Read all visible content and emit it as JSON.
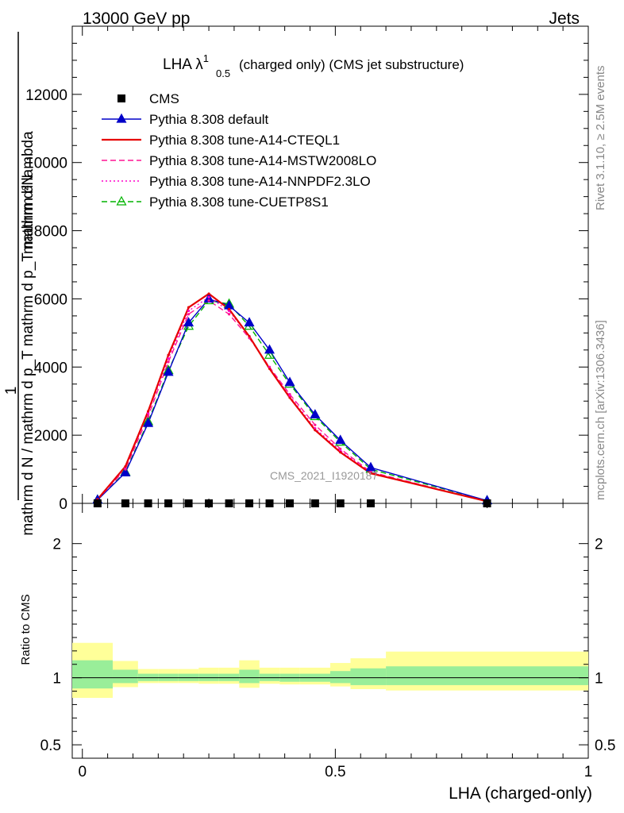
{
  "header": {
    "energy_label": "13000 GeV pp",
    "process_label": "Jets"
  },
  "side_labels": {
    "rivet": "Rivet 3.1.10, ≥ 2.5M events",
    "mcplots": "mcplots.cern.ch [arXiv:1306.3436]"
  },
  "analysis_id": "CMS_2021_I1920187",
  "chart_data": {
    "type": "line",
    "title": "LHA λ¹₀.₅ (charged only) (CMS jet substructure)",
    "title_parts": {
      "main": "LHA λ",
      "sup": "1",
      "sub": "0.5",
      "rest": "(charged only) (CMS jet substructure)"
    },
    "xlabel": "LHA (charged-only)",
    "ylabel_top": "1",
    "ylabel_num": "mathrm d²N",
    "ylabel_den": "mathrm d N / mathrm d p_T mathrm d p_T mathrm d lambda",
    "ratio_ylabel": "Ratio to CMS",
    "xlim": [
      -0.02,
      1.0
    ],
    "ylim": [
      0,
      14000
    ],
    "ratio_ylim": [
      0.4,
      2.3
    ],
    "x_ticks": [
      "0",
      "0.5",
      "1"
    ],
    "y_ticks": [
      "0",
      "2000",
      "4000",
      "6000",
      "8000",
      "10000",
      "12000"
    ],
    "ratio_ticks": [
      "0.5",
      "1",
      "2"
    ],
    "legend_position": "top-left",
    "x": [
      0.03,
      0.085,
      0.13,
      0.17,
      0.21,
      0.25,
      0.29,
      0.33,
      0.37,
      0.41,
      0.46,
      0.51,
      0.57,
      0.8
    ],
    "bin_edges": [
      -0.02,
      0.06,
      0.11,
      0.15,
      0.19,
      0.23,
      0.27,
      0.31,
      0.35,
      0.39,
      0.43,
      0.49,
      0.53,
      0.6,
      1.0
    ],
    "series": [
      {
        "name": "CMS",
        "color": "#000000",
        "marker": "square",
        "line": "none",
        "values": [
          0,
          0,
          0,
          0,
          0,
          0,
          0,
          0,
          0,
          0,
          0,
          0,
          0,
          0
        ]
      },
      {
        "name": "Pythia 8.308 default",
        "color": "#0000c8",
        "marker": "triangle-filled",
        "line": "solid",
        "values": [
          100,
          900,
          2350,
          3850,
          5300,
          6000,
          5800,
          5300,
          4500,
          3550,
          2600,
          1850,
          1050,
          80
        ]
      },
      {
        "name": "Pythia 8.308 tune-A14-CTEQL1",
        "color": "#e60000",
        "marker": "none",
        "line": "solid",
        "values": [
          120,
          1080,
          2700,
          4350,
          5750,
          6150,
          5700,
          4900,
          3950,
          3100,
          2150,
          1500,
          880,
          60
        ]
      },
      {
        "name": "Pythia 8.308 tune-A14-MSTW2008LO",
        "color": "#ff1493",
        "marker": "none",
        "line": "dashed",
        "values": [
          110,
          1000,
          2550,
          4150,
          5550,
          5950,
          5550,
          4850,
          4000,
          3200,
          2300,
          1600,
          920,
          60
        ]
      },
      {
        "name": "Pythia 8.308 tune-A14-NNPDF2.3LO",
        "color": "#ff00cc",
        "marker": "none",
        "line": "dotted",
        "values": [
          110,
          1040,
          2650,
          4250,
          5650,
          6050,
          5650,
          4900,
          3980,
          3150,
          2200,
          1550,
          900,
          60
        ]
      },
      {
        "name": "Pythia 8.308 tune-CUETP8S1",
        "color": "#00b400",
        "marker": "triangle-open",
        "line": "dashed",
        "values": [
          100,
          920,
          2400,
          3900,
          5200,
          5950,
          5850,
          5200,
          4350,
          3500,
          2550,
          1800,
          1000,
          80
        ]
      }
    ],
    "ratio_bands": {
      "inner_color": "#99ee99",
      "outer_color": "#ffff99",
      "inner_lo": [
        0.92,
        0.96,
        0.975,
        0.975,
        0.975,
        0.975,
        0.975,
        0.96,
        0.975,
        0.97,
        0.97,
        0.96,
        0.945,
        0.945
      ],
      "inner_hi": [
        1.13,
        1.06,
        1.03,
        1.03,
        1.03,
        1.03,
        1.03,
        1.06,
        1.03,
        1.03,
        1.03,
        1.05,
        1.07,
        1.085
      ],
      "outer_lo": [
        0.85,
        0.93,
        0.96,
        0.96,
        0.96,
        0.955,
        0.955,
        0.925,
        0.955,
        0.95,
        0.95,
        0.935,
        0.915,
        0.905
      ],
      "outer_hi": [
        1.26,
        1.125,
        1.065,
        1.065,
        1.065,
        1.075,
        1.075,
        1.13,
        1.075,
        1.075,
        1.075,
        1.11,
        1.145,
        1.195
      ]
    }
  }
}
